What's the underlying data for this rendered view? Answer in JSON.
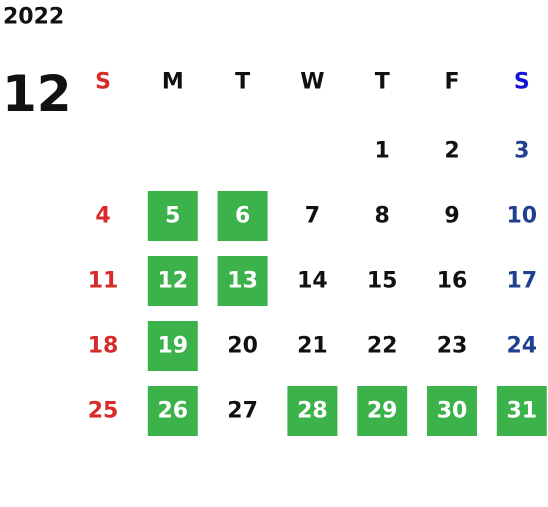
{
  "calendar": {
    "year": "2022",
    "month": "12",
    "weekdays": [
      "S",
      "M",
      "T",
      "W",
      "T",
      "F",
      "S"
    ],
    "weeks": [
      [
        null,
        null,
        null,
        null,
        {
          "day": "1",
          "marked": false
        },
        {
          "day": "2",
          "marked": false
        },
        {
          "day": "3",
          "marked": false
        }
      ],
      [
        {
          "day": "4",
          "marked": false
        },
        {
          "day": "5",
          "marked": true
        },
        {
          "day": "6",
          "marked": true
        },
        {
          "day": "7",
          "marked": false
        },
        {
          "day": "8",
          "marked": false
        },
        {
          "day": "9",
          "marked": false
        },
        {
          "day": "10",
          "marked": false
        }
      ],
      [
        {
          "day": "11",
          "marked": false
        },
        {
          "day": "12",
          "marked": true
        },
        {
          "day": "13",
          "marked": true
        },
        {
          "day": "14",
          "marked": false
        },
        {
          "day": "15",
          "marked": false
        },
        {
          "day": "16",
          "marked": false
        },
        {
          "day": "17",
          "marked": false
        }
      ],
      [
        {
          "day": "18",
          "marked": false
        },
        {
          "day": "19",
          "marked": true
        },
        {
          "day": "20",
          "marked": false
        },
        {
          "day": "21",
          "marked": false
        },
        {
          "day": "22",
          "marked": false
        },
        {
          "day": "23",
          "marked": false
        },
        {
          "day": "24",
          "marked": false
        }
      ],
      [
        {
          "day": "25",
          "marked": false
        },
        {
          "day": "26",
          "marked": true
        },
        {
          "day": "27",
          "marked": false
        },
        {
          "day": "28",
          "marked": true
        },
        {
          "day": "29",
          "marked": true
        },
        {
          "day": "30",
          "marked": true
        },
        {
          "day": "31",
          "marked": true
        }
      ]
    ],
    "colors": {
      "sunday": "#d92a2a",
      "saturday_header": "#1414d8",
      "saturday": "#1f3f8f",
      "weekday": "#111111",
      "marked": "#3bb34a",
      "marked_text": "#ffffff"
    }
  }
}
